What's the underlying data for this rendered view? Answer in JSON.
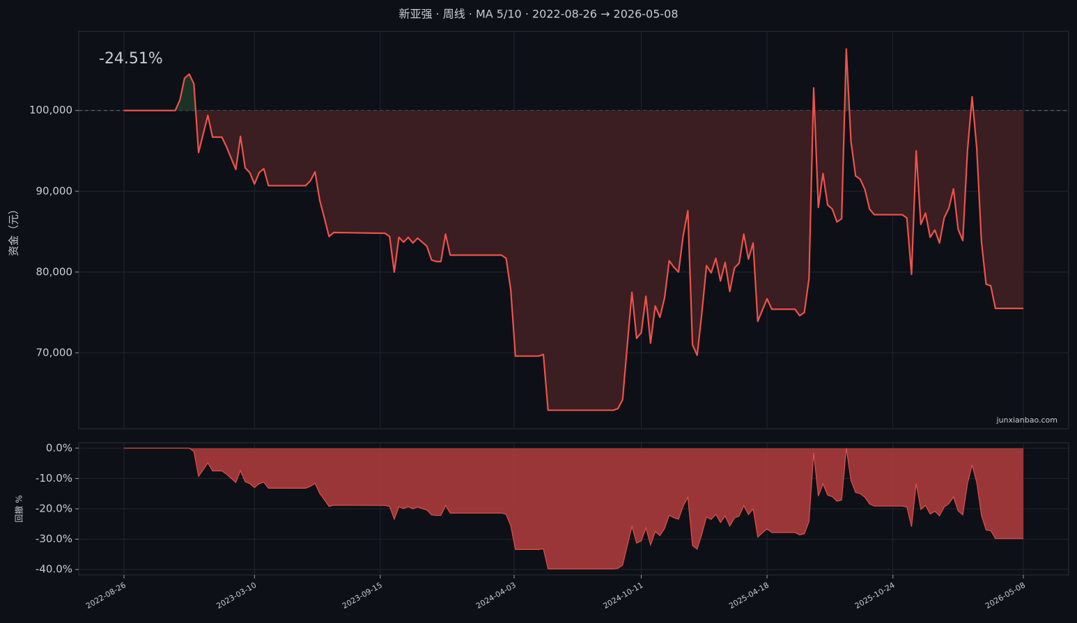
{
  "chart_data": [
    {
      "type": "line",
      "title": "新亚强 · 周线 · MA 5/10 · 2022-08-26 → 2026-05-08",
      "ylabel": "资金（元）",
      "annotation": "-24.51%",
      "watermark": "junxianbao.com",
      "color": "#f0524a",
      "baseline": 100000,
      "fill_above": "#1b3324",
      "fill_below": "#3a1e21",
      "grid": true,
      "xlim": [
        "2022-06-19",
        "2026-07-15"
      ],
      "ylim": [
        60600,
        109800
      ],
      "yticks": [
        {
          "value": 70000,
          "label": "70,000"
        },
        {
          "value": 80000,
          "label": "80,000"
        },
        {
          "value": 90000,
          "label": "90,000"
        },
        {
          "value": 100000,
          "label": "100,000"
        }
      ],
      "x": [
        "2022-08-26",
        "2022-11-11",
        "2022-11-18",
        "2022-11-25",
        "2022-12-02",
        "2022-12-09",
        "2022-12-16",
        "2022-12-30",
        "2023-01-06",
        "2023-01-20",
        "2023-01-27",
        "2023-02-10",
        "2023-02-17",
        "2023-02-24",
        "2023-03-03",
        "2023-03-10",
        "2023-03-17",
        "2023-03-24",
        "2023-03-31",
        "2023-05-26",
        "2023-06-02",
        "2023-06-09",
        "2023-06-16",
        "2023-06-23",
        "2023-06-30",
        "2023-07-07",
        "2023-09-22",
        "2023-09-29",
        "2023-10-06",
        "2023-10-13",
        "2023-10-20",
        "2023-10-27",
        "2023-11-03",
        "2023-11-10",
        "2023-11-24",
        "2023-12-01",
        "2023-12-08",
        "2023-12-15",
        "2023-12-22",
        "2023-12-29",
        "2024-03-15",
        "2024-03-22",
        "2024-03-29",
        "2024-04-05",
        "2024-05-10",
        "2024-05-17",
        "2024-05-24",
        "2024-08-30",
        "2024-09-06",
        "2024-09-13",
        "2024-09-20",
        "2024-09-27",
        "2024-10-04",
        "2024-10-11",
        "2024-10-18",
        "2024-10-25",
        "2024-11-01",
        "2024-11-08",
        "2024-11-15",
        "2024-11-22",
        "2024-11-29",
        "2024-12-06",
        "2024-12-13",
        "2024-12-20",
        "2024-12-27",
        "2025-01-03",
        "2025-01-10",
        "2025-01-17",
        "2025-01-24",
        "2025-01-31",
        "2025-02-07",
        "2025-02-14",
        "2025-02-21",
        "2025-02-28",
        "2025-03-07",
        "2025-03-14",
        "2025-03-21",
        "2025-03-28",
        "2025-04-04",
        "2025-04-11",
        "2025-04-18",
        "2025-04-25",
        "2025-05-30",
        "2025-06-06",
        "2025-06-13",
        "2025-06-20",
        "2025-06-27",
        "2025-07-04",
        "2025-07-11",
        "2025-07-18",
        "2025-07-25",
        "2025-08-01",
        "2025-08-08",
        "2025-08-15",
        "2025-08-22",
        "2025-08-29",
        "2025-09-05",
        "2025-09-12",
        "2025-09-19",
        "2025-09-26",
        "2025-11-07",
        "2025-11-14",
        "2025-11-21",
        "2025-11-28",
        "2025-12-05",
        "2025-12-12",
        "2025-12-19",
        "2025-12-26",
        "2026-01-02",
        "2026-01-09",
        "2026-01-16",
        "2026-01-23",
        "2026-01-30",
        "2026-02-06",
        "2026-02-13",
        "2026-02-20",
        "2026-02-27",
        "2026-03-06",
        "2026-03-13",
        "2026-03-20",
        "2026-03-27",
        "2026-05-08"
      ],
      "values": [
        100000,
        100000,
        101300,
        104000,
        104500,
        103300,
        94800,
        99400,
        96700,
        96700,
        95500,
        92700,
        96800,
        92900,
        92300,
        90900,
        92300,
        92800,
        90700,
        90700,
        91300,
        92400,
        88900,
        86700,
        84400,
        84900,
        84800,
        84400,
        80000,
        84300,
        83700,
        84300,
        83600,
        84200,
        83200,
        81500,
        81300,
        81300,
        84700,
        82100,
        82100,
        81700,
        77800,
        69600,
        69600,
        69800,
        62900,
        62900,
        63100,
        64200,
        70900,
        77500,
        71800,
        72500,
        77000,
        71200,
        75800,
        74400,
        76800,
        81400,
        80600,
        80000,
        84500,
        87600,
        71000,
        69700,
        74900,
        80800,
        79900,
        81700,
        78900,
        81200,
        77600,
        80500,
        81100,
        84700,
        81600,
        83600,
        73900,
        75300,
        76700,
        75400,
        75400,
        74600,
        75000,
        79200,
        102800,
        88000,
        92200,
        88300,
        87800,
        86200,
        86600,
        107600,
        96200,
        91900,
        91500,
        90200,
        87800,
        87100,
        87100,
        86700,
        79700,
        95000,
        85900,
        87300,
        84300,
        85200,
        83600,
        86700,
        87900,
        90300,
        85300,
        83900,
        95000,
        101700,
        95300,
        83800,
        78500,
        78300,
        75500,
        75500
      ]
    },
    {
      "type": "area",
      "ylabel": "回撤 %",
      "color": "#e0504a",
      "fill": "#a3393a",
      "grid": true,
      "xlim": [
        "2022-06-19",
        "2026-07-15"
      ],
      "ylim": [
        -41.8,
        1.8
      ],
      "yticks": [
        {
          "value": -40,
          "label": "-40.0%"
        },
        {
          "value": -30,
          "label": "-30.0%"
        },
        {
          "value": -20,
          "label": "-20.0%"
        },
        {
          "value": -10,
          "label": "-10.0%"
        },
        {
          "value": 0,
          "label": "0.0%"
        }
      ],
      "xticks": [
        "2022-08-26",
        "2023-03-10",
        "2023-09-15",
        "2024-04-03",
        "2024-10-11",
        "2025-04-18",
        "2025-10-24",
        "2026-05-08"
      ],
      "x": [
        "2022-08-26",
        "2022-11-11",
        "2022-11-18",
        "2022-11-25",
        "2022-12-02",
        "2022-12-09",
        "2022-12-16",
        "2022-12-30",
        "2023-01-06",
        "2023-01-20",
        "2023-01-27",
        "2023-02-10",
        "2023-02-17",
        "2023-02-24",
        "2023-03-03",
        "2023-03-10",
        "2023-03-17",
        "2023-03-24",
        "2023-03-31",
        "2023-05-26",
        "2023-06-02",
        "2023-06-09",
        "2023-06-16",
        "2023-06-23",
        "2023-06-30",
        "2023-07-07",
        "2023-09-22",
        "2023-09-29",
        "2023-10-06",
        "2023-10-13",
        "2023-10-20",
        "2023-10-27",
        "2023-11-03",
        "2023-11-10",
        "2023-11-24",
        "2023-12-01",
        "2023-12-08",
        "2023-12-15",
        "2023-12-22",
        "2023-12-29",
        "2024-03-15",
        "2024-03-22",
        "2024-03-29",
        "2024-04-05",
        "2024-05-10",
        "2024-05-17",
        "2024-05-24",
        "2024-08-30",
        "2024-09-06",
        "2024-09-13",
        "2024-09-20",
        "2024-09-27",
        "2024-10-04",
        "2024-10-11",
        "2024-10-18",
        "2024-10-25",
        "2024-11-01",
        "2024-11-08",
        "2024-11-15",
        "2024-11-22",
        "2024-11-29",
        "2024-12-06",
        "2024-12-13",
        "2024-12-20",
        "2024-12-27",
        "2025-01-03",
        "2025-01-10",
        "2025-01-17",
        "2025-01-24",
        "2025-01-31",
        "2025-02-07",
        "2025-02-14",
        "2025-02-21",
        "2025-02-28",
        "2025-03-07",
        "2025-03-14",
        "2025-03-21",
        "2025-03-28",
        "2025-04-04",
        "2025-04-11",
        "2025-04-18",
        "2025-04-25",
        "2025-05-30",
        "2025-06-06",
        "2025-06-13",
        "2025-06-20",
        "2025-06-27",
        "2025-07-04",
        "2025-07-11",
        "2025-07-18",
        "2025-07-25",
        "2025-08-01",
        "2025-08-08",
        "2025-08-15",
        "2025-08-22",
        "2025-08-29",
        "2025-09-05",
        "2025-09-12",
        "2025-09-19",
        "2025-09-26",
        "2025-11-07",
        "2025-11-14",
        "2025-11-21",
        "2025-11-28",
        "2025-12-05",
        "2025-12-12",
        "2025-12-19",
        "2025-12-26",
        "2026-01-02",
        "2026-01-09",
        "2026-01-16",
        "2026-01-23",
        "2026-01-30",
        "2026-02-06",
        "2026-02-13",
        "2026-02-20",
        "2026-02-27",
        "2026-03-06",
        "2026-03-13",
        "2026-03-20",
        "2026-03-27",
        "2026-05-08"
      ],
      "values": [
        0,
        0,
        0,
        0,
        0,
        -1.1,
        -9.3,
        -4.9,
        -7.5,
        -7.5,
        -8.6,
        -11.3,
        -7.4,
        -11.1,
        -11.7,
        -13.0,
        -11.7,
        -11.2,
        -13.2,
        -13.2,
        -12.6,
        -11.6,
        -14.9,
        -17.0,
        -19.2,
        -18.8,
        -18.9,
        -19.2,
        -23.4,
        -19.3,
        -19.9,
        -19.3,
        -20.0,
        -19.4,
        -20.4,
        -22.0,
        -22.2,
        -22.2,
        -18.9,
        -21.4,
        -21.4,
        -21.8,
        -25.6,
        -33.4,
        -33.4,
        -33.2,
        -39.8,
        -39.8,
        -39.6,
        -38.6,
        -32.2,
        -25.8,
        -31.3,
        -30.6,
        -26.3,
        -31.9,
        -27.5,
        -28.8,
        -26.5,
        -22.1,
        -22.9,
        -23.4,
        -19.1,
        -16.2,
        -32.1,
        -33.3,
        -28.3,
        -22.7,
        -23.5,
        -21.8,
        -24.5,
        -22.3,
        -25.7,
        -23.0,
        -22.4,
        -18.9,
        -21.9,
        -20.0,
        -29.3,
        -27.9,
        -26.6,
        -27.8,
        -27.8,
        -28.6,
        -28.2,
        -24.2,
        -1.6,
        -15.8,
        -11.8,
        -15.5,
        -16.0,
        -17.5,
        -17.1,
        0,
        -10.6,
        -14.6,
        -15.0,
        -16.2,
        -18.4,
        -19.1,
        -19.1,
        -19.4,
        -25.9,
        -11.7,
        -20.2,
        -18.9,
        -21.7,
        -20.8,
        -22.3,
        -19.4,
        -18.3,
        -16.1,
        -20.7,
        -22.0,
        -11.7,
        -5.5,
        -11.4,
        -22.1,
        -27.0,
        -27.2,
        -29.8,
        -29.8
      ]
    }
  ]
}
